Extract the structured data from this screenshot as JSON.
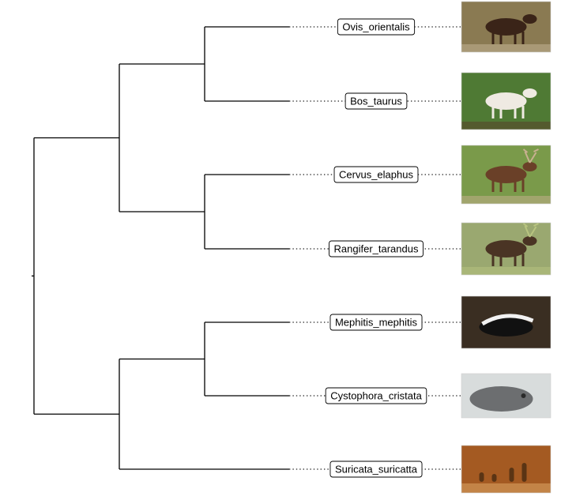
{
  "taxa": [
    {
      "name": "Ovis_orientalis",
      "photo_icon": "mouflon-photo-icon",
      "palette": {
        "bg": "#8a7a52",
        "fg": "#3a2418",
        "accent": "#c8b89a"
      }
    },
    {
      "name": "Bos_taurus",
      "photo_icon": "cow-photo-icon",
      "palette": {
        "bg": "#4f7a34",
        "fg": "#efeae2",
        "accent": "#5a3a28"
      }
    },
    {
      "name": "Cervus_elaphus",
      "photo_icon": "red-deer-photo-icon",
      "palette": {
        "bg": "#7a9a4a",
        "fg": "#6a4028",
        "accent": "#c8b090"
      }
    },
    {
      "name": "Rangifer_tarandus",
      "photo_icon": "reindeer-photo-icon",
      "palette": {
        "bg": "#9aa870",
        "fg": "#4a3424",
        "accent": "#b8c480"
      }
    },
    {
      "name": "Mephitis_mephitis",
      "photo_icon": "skunk-photo-icon",
      "palette": {
        "bg": "#3a2e22",
        "fg": "#111111",
        "accent": "#f2f2f2"
      }
    },
    {
      "name": "Cystophora_cristata",
      "photo_icon": "seal-photo-icon",
      "palette": {
        "bg": "#d8dcdc",
        "fg": "#6c6e70",
        "accent": "#2a2a2a"
      }
    },
    {
      "name": "Suricata_suricatta",
      "photo_icon": "meerkat-photo-icon",
      "palette": {
        "bg": "#a45a22",
        "fg": "#5a3414",
        "accent": "#d9a060"
      }
    }
  ],
  "clades": [
    {
      "id": "n1",
      "children": [
        "t0",
        "t1"
      ]
    },
    {
      "id": "n2",
      "children": [
        "t2",
        "t3"
      ]
    },
    {
      "id": "n3",
      "children": [
        "n1",
        "n2"
      ]
    },
    {
      "id": "n4",
      "children": [
        "t4",
        "t5"
      ]
    },
    {
      "id": "n5",
      "children": [
        "n4",
        "t6"
      ]
    },
    {
      "id": "root",
      "children": [
        "n3",
        "n5"
      ]
    }
  ]
}
